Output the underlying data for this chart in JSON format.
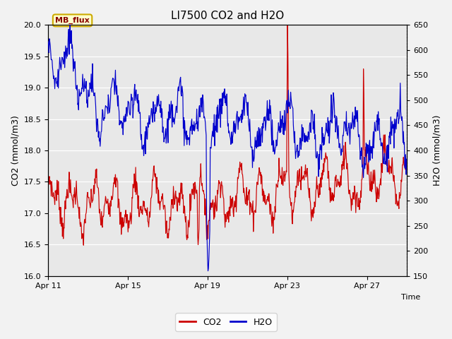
{
  "title": "LI7500 CO2 and H2O",
  "xlabel": "Time",
  "ylabel_left": "CO2 (mmol/m3)",
  "ylabel_right": "H2O (mmol/m3)",
  "co2_ylim": [
    16.0,
    20.0
  ],
  "h2o_ylim": [
    150,
    650
  ],
  "co2_yticks": [
    16.0,
    16.5,
    17.0,
    17.5,
    18.0,
    18.5,
    19.0,
    19.5,
    20.0
  ],
  "h2o_yticks": [
    150,
    200,
    250,
    300,
    350,
    400,
    450,
    500,
    550,
    600,
    650
  ],
  "xtick_days": [
    0,
    4,
    8,
    12,
    16
  ],
  "xtick_labels": [
    "Apr 11",
    "Apr 15",
    "Apr 19",
    "Apr 23",
    "Apr 27"
  ],
  "co2_color": "#cc0000",
  "h2o_color": "#0000cc",
  "plot_bg_color": "#e8e8e8",
  "fig_bg_color": "#f2f2f2",
  "grid_color": "#ffffff",
  "label_box_text": "MB_flux",
  "label_box_facecolor": "#ffffcc",
  "label_box_edgecolor": "#ccaa00",
  "label_text_color": "#880000",
  "n_points": 800,
  "total_days": 18
}
